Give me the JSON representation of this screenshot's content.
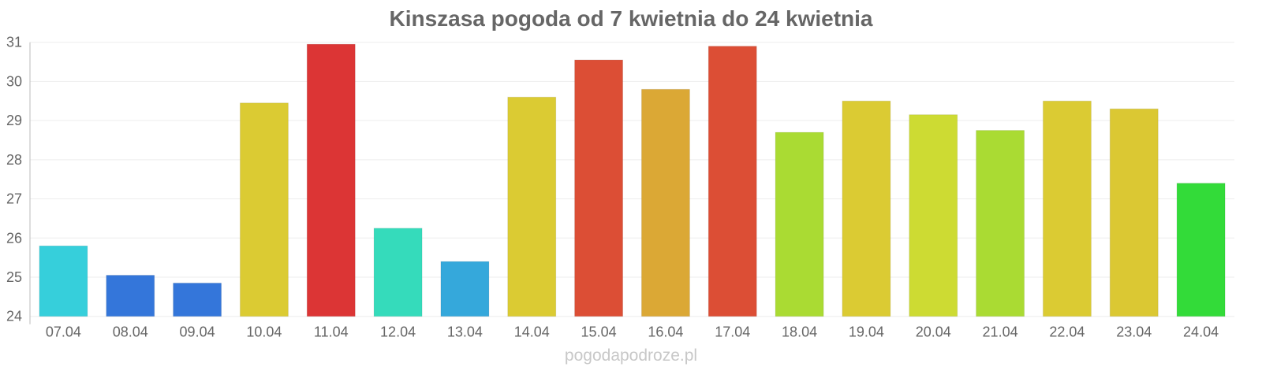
{
  "chart_data": {
    "type": "bar",
    "title": "Kinszasa pogoda od 7 kwietnia do 24 kwietnia",
    "xlabel": "",
    "ylabel": "",
    "ylim": [
      24,
      31
    ],
    "yticks": [
      24,
      25,
      26,
      27,
      28,
      29,
      30,
      31
    ],
    "grid": true,
    "categories": [
      "07.04",
      "08.04",
      "09.04",
      "10.04",
      "11.04",
      "12.04",
      "13.04",
      "14.04",
      "15.04",
      "16.04",
      "17.04",
      "18.04",
      "19.04",
      "20.04",
      "21.04",
      "22.04",
      "23.04",
      "24.04"
    ],
    "values": [
      25.8,
      25.05,
      24.85,
      29.45,
      30.95,
      26.25,
      25.4,
      29.6,
      30.55,
      29.8,
      30.9,
      28.7,
      29.5,
      29.15,
      28.75,
      29.5,
      29.3,
      27.4
    ],
    "colors": [
      "#36cfdb",
      "#3476da",
      "#3476da",
      "#dbcb33",
      "#dc3535",
      "#35dbbb",
      "#35a8db",
      "#dbcb33",
      "#dc4e35",
      "#dba835",
      "#dc4e35",
      "#aadb33",
      "#dbcb33",
      "#cddb33",
      "#aadb33",
      "#dbcb33",
      "#dbc833",
      "#33db39"
    ]
  },
  "footer": {
    "credit": "pogodapodroze.pl"
  }
}
